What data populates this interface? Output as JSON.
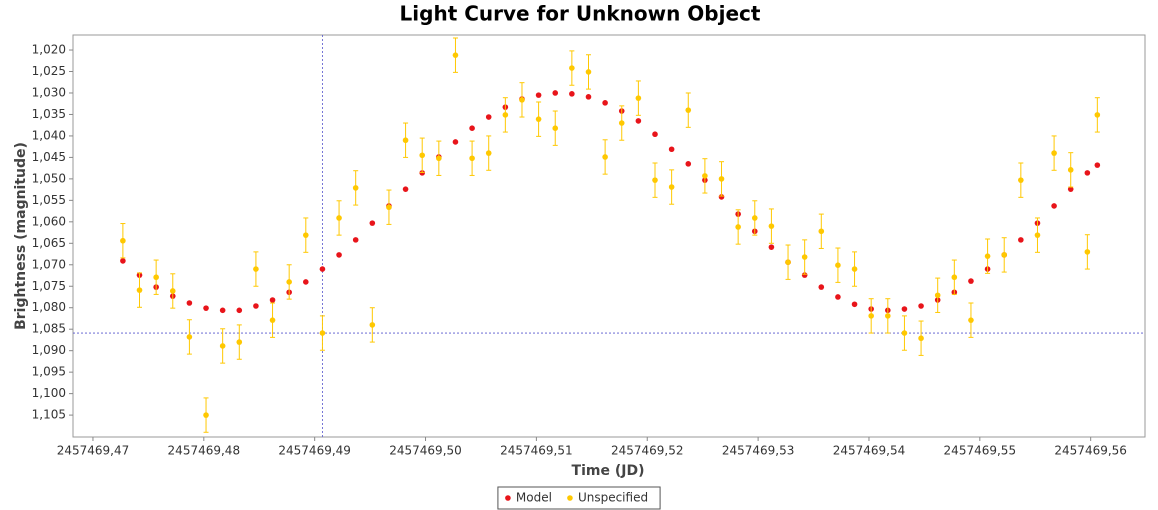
{
  "chart_data": {
    "type": "scatter",
    "title": "Light Curve for Unknown Object",
    "x_label": "Time (JD)",
    "y_label": "Brightness (magnitude)",
    "x": [
      2457469.4727,
      2457469.4742,
      2457469.4757,
      2457469.4772,
      2457469.4787,
      2457469.4802,
      2457469.4817,
      2457469.4832,
      2457469.4847,
      2457469.4862,
      2457469.4877,
      2457469.4892,
      2457469.4907,
      2457469.4922,
      2457469.4937,
      2457469.4952,
      2457469.4967,
      2457469.4982,
      2457469.4997,
      2457469.5012,
      2457469.5027,
      2457469.5042,
      2457469.5057,
      2457469.5072,
      2457469.5087,
      2457469.5102,
      2457469.5117,
      2457469.5132,
      2457469.5147,
      2457469.5162,
      2457469.5177,
      2457469.5192,
      2457469.5207,
      2457469.5222,
      2457469.5237,
      2457469.5252,
      2457469.5267,
      2457469.5282,
      2457469.5297,
      2457469.5312,
      2457469.5327,
      2457469.5342,
      2457469.5357,
      2457469.5372,
      2457469.5387,
      2457469.5402,
      2457469.5417,
      2457469.5432,
      2457469.5447,
      2457469.5462,
      2457469.5477,
      2457469.5492,
      2457469.5507,
      2457469.5522,
      2457469.5537,
      2457469.5552,
      2457469.5567,
      2457469.5582,
      2457469.5597,
      2457469.5606
    ],
    "series": [
      {
        "name": "Model",
        "color": "#e8141a",
        "values": [
          1.0691,
          1.0724,
          1.0752,
          1.0773,
          1.0789,
          1.0801,
          1.0806,
          1.0806,
          1.0796,
          1.0782,
          1.0764,
          1.074,
          1.071,
          1.0677,
          1.0642,
          1.0603,
          1.0563,
          1.0524,
          1.0486,
          1.0449,
          1.0414,
          1.0382,
          1.0356,
          1.0333,
          1.0314,
          1.0305,
          1.03,
          1.0302,
          1.0309,
          1.0323,
          1.0342,
          1.0365,
          1.0396,
          1.0431,
          1.0465,
          1.0503,
          1.0542,
          1.0582,
          1.0622,
          1.0659,
          1.0694,
          1.0724,
          1.0752,
          1.0775,
          1.0792,
          1.0803,
          1.0806,
          1.0803,
          1.0796,
          1.0782,
          1.0764,
          1.0738,
          1.071,
          1.0677,
          1.0642,
          1.0603,
          1.0563,
          1.0524,
          1.0486,
          1.0468
        ]
      },
      {
        "name": "Unspecified",
        "color": "#ffc800",
        "values": [
          1.0644,
          1.0759,
          1.0729,
          1.0761,
          1.0868,
          1.105,
          1.0889,
          1.088,
          1.071,
          1.0829,
          1.074,
          1.0631,
          1.0859,
          1.0591,
          1.0521,
          1.084,
          1.0566,
          1.041,
          1.0445,
          1.0452,
          1.0212,
          1.0452,
          1.044,
          1.0351,
          1.0316,
          1.0361,
          1.0382,
          1.0242,
          1.0251,
          1.0449,
          1.037,
          1.0312,
          1.0503,
          1.0519,
          1.034,
          1.0493,
          1.05,
          1.0612,
          1.0591,
          1.061,
          1.0694,
          1.0682,
          1.0622,
          1.0701,
          1.071,
          1.0819,
          1.0819,
          1.0859,
          1.0871,
          1.0771,
          1.0729,
          1.0829,
          1.068,
          1.0677,
          1.0503,
          1.0631,
          1.044,
          1.0479,
          1.067,
          1.0351
        ],
        "errors": [
          0.004,
          0.004,
          0.004,
          0.004,
          0.004,
          0.004,
          0.004,
          0.004,
          0.004,
          0.004,
          0.004,
          0.004,
          0.004,
          0.004,
          0.004,
          0.004,
          0.004,
          0.004,
          0.004,
          0.004,
          0.004,
          0.004,
          0.004,
          0.004,
          0.004,
          0.004,
          0.004,
          0.004,
          0.004,
          0.004,
          0.004,
          0.004,
          0.004,
          0.004,
          0.004,
          0.004,
          0.004,
          0.004,
          0.004,
          0.004,
          0.004,
          0.004,
          0.004,
          0.004,
          0.004,
          0.004,
          0.004,
          0.004,
          0.004,
          0.004,
          0.004,
          0.004,
          0.004,
          0.004,
          0.004,
          0.004,
          0.004,
          0.004,
          0.004,
          0.004
        ]
      }
    ],
    "xlim": [
      2457469.4682,
      2457469.5649
    ],
    "ylim": [
      1.0165,
      1.1101
    ],
    "y_inverted": true,
    "xticks": [
      {
        "value": 2457469.47,
        "label": "2457469,47"
      },
      {
        "value": 2457469.48,
        "label": "2457469,48"
      },
      {
        "value": 2457469.49,
        "label": "2457469,49"
      },
      {
        "value": 2457469.5,
        "label": "2457469,50"
      },
      {
        "value": 2457469.51,
        "label": "2457469,51"
      },
      {
        "value": 2457469.52,
        "label": "2457469,52"
      },
      {
        "value": 2457469.53,
        "label": "2457469,53"
      },
      {
        "value": 2457469.54,
        "label": "2457469,54"
      },
      {
        "value": 2457469.55,
        "label": "2457469,55"
      },
      {
        "value": 2457469.56,
        "label": "2457469,56"
      }
    ],
    "yticks": [
      {
        "value": 1.02,
        "label": "1,020"
      },
      {
        "value": 1.025,
        "label": "1,025"
      },
      {
        "value": 1.03,
        "label": "1,030"
      },
      {
        "value": 1.035,
        "label": "1,035"
      },
      {
        "value": 1.04,
        "label": "1,040"
      },
      {
        "value": 1.045,
        "label": "1,045"
      },
      {
        "value": 1.05,
        "label": "1,050"
      },
      {
        "value": 1.055,
        "label": "1,055"
      },
      {
        "value": 1.06,
        "label": "1,060"
      },
      {
        "value": 1.065,
        "label": "1,065"
      },
      {
        "value": 1.07,
        "label": "1,070"
      },
      {
        "value": 1.075,
        "label": "1,075"
      },
      {
        "value": 1.08,
        "label": "1,080"
      },
      {
        "value": 1.085,
        "label": "1,085"
      },
      {
        "value": 1.09,
        "label": "1,090"
      },
      {
        "value": 1.095,
        "label": "1,095"
      },
      {
        "value": 1.1,
        "label": "1,100"
      },
      {
        "value": 1.105,
        "label": "1,105"
      }
    ],
    "grid": false,
    "crosshair": {
      "x": 2457469.4907,
      "y": 1.0859,
      "color": "#5555cc"
    },
    "legend": "bottom"
  }
}
